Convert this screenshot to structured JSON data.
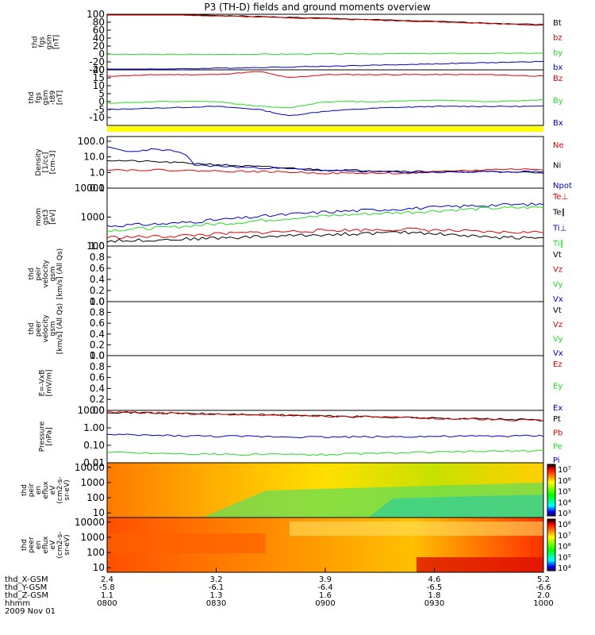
{
  "title": "P3 (TH-D) fields and ground moments overview",
  "colors": {
    "black": "#000000",
    "red": "#e00000",
    "green": "#22dd22",
    "blue": "#0000cc",
    "yellow": "#ffff00"
  },
  "chart_data": [
    {
      "type": "line",
      "ylabel_lines": [
        "thd",
        "fgs",
        "gsm",
        "[nT]"
      ],
      "ylim": [
        -40,
        100
      ],
      "yticks": [
        "100",
        "80",
        "60",
        "40",
        "20",
        "0",
        "-20",
        "-40"
      ],
      "legend": [
        {
          "name": "Bt",
          "color": "black"
        },
        {
          "name": "bz",
          "color": "red"
        },
        {
          "name": "by",
          "color": "green"
        },
        {
          "name": "bx",
          "color": "blue"
        }
      ],
      "x_hours": [
        8.0,
        8.5,
        9.0,
        9.5,
        10.0
      ],
      "series": [
        {
          "name": "Bt",
          "color": "black",
          "values": [
            104,
            97,
            90,
            82,
            74
          ]
        },
        {
          "name": "bz",
          "color": "red",
          "values": [
            103,
            96,
            89,
            81,
            72
          ]
        },
        {
          "name": "by",
          "color": "green",
          "values": [
            -1,
            -1,
            0,
            1,
            2
          ]
        },
        {
          "name": "bx",
          "color": "blue",
          "values": [
            -40,
            -36,
            -31,
            -25,
            -19
          ]
        }
      ]
    },
    {
      "type": "line",
      "ylabel_lines": [
        "thd",
        "fgs",
        "gsm",
        "-t89",
        "[nT]"
      ],
      "ylim": [
        -15,
        20
      ],
      "yticks": [
        "20",
        "15",
        "10",
        "5",
        "0",
        "-5",
        "-10"
      ],
      "legend": [
        {
          "name": "Bz",
          "color": "red"
        },
        {
          "name": "By",
          "color": "green"
        },
        {
          "name": "Bx",
          "color": "blue"
        }
      ],
      "x_hours": [
        8.0,
        8.25,
        8.5,
        8.7,
        8.83,
        9.0,
        9.25,
        9.5,
        9.75,
        10.0
      ],
      "series": [
        {
          "name": "Bz",
          "color": "red",
          "values": [
            16,
            17,
            17,
            19,
            15,
            17,
            17,
            17,
            17,
            16
          ]
        },
        {
          "name": "By",
          "color": "green",
          "values": [
            -1,
            0,
            0,
            -3,
            -4,
            0,
            0,
            1,
            0,
            1
          ]
        },
        {
          "name": "Bx",
          "color": "blue",
          "values": [
            -5,
            -4,
            -3,
            -5,
            -9,
            -6,
            -4,
            -3,
            -3,
            -3
          ]
        }
      ]
    },
    {
      "type": "line",
      "ylabel_lines": [
        "Density",
        "[1/cc]",
        "[cm-3]"
      ],
      "scale": "log",
      "ylim": [
        0.1,
        200
      ],
      "yticks": [
        "100.0",
        "10.0",
        "1.0",
        "0.1"
      ],
      "legend": [
        {
          "name": "Ne",
          "color": "red"
        },
        {
          "name": "Ni",
          "color": "black"
        },
        {
          "name": "Npot",
          "color": "blue"
        }
      ],
      "x_hours": [
        8.0,
        8.1,
        8.2,
        8.3,
        8.4,
        8.6,
        8.8,
        9.0,
        9.4,
        9.8,
        10.0
      ],
      "series": [
        {
          "name": "Ni",
          "color": "black",
          "values": [
            6,
            5.5,
            5,
            4.4,
            3.8,
            2.7,
            2.0,
            1.5,
            1.2,
            1.1,
            1.0
          ]
        },
        {
          "name": "Ne",
          "color": "red",
          "values": [
            1.6,
            1.4,
            1.5,
            1.4,
            1.3,
            1.2,
            1.1,
            0.9,
            0.9,
            1.6,
            1.6
          ]
        },
        {
          "name": "Npot",
          "color": "blue",
          "values": [
            40,
            20,
            30,
            25,
            3,
            2.2,
            1.8,
            1.3,
            1.0,
            1.1,
            1.2
          ]
        }
      ]
    },
    {
      "type": "line",
      "ylabel_lines": [
        "mom",
        "gst3",
        "[eV]"
      ],
      "scale": "log",
      "ylim": [
        100,
        10000
      ],
      "yticks": [
        "10000",
        "1000",
        "100"
      ],
      "legend": [
        {
          "name": "Te⊥",
          "color": "red"
        },
        {
          "name": "Te∥",
          "color": "black"
        },
        {
          "name": "Ti⊥",
          "color": "blue"
        },
        {
          "name": "Ti∥",
          "color": "green"
        }
      ],
      "x_hours": [
        8.0,
        8.3,
        8.6,
        9.0,
        9.4,
        9.75,
        10.0
      ],
      "series": [
        {
          "name": "Ti⊥",
          "color": "blue",
          "values": [
            500,
            600,
            900,
            1500,
            2000,
            2600,
            2800
          ]
        },
        {
          "name": "Ti∥",
          "color": "green",
          "values": [
            350,
            450,
            650,
            1100,
            1500,
            2000,
            2200
          ]
        },
        {
          "name": "Te⊥",
          "color": "red",
          "values": [
            200,
            220,
            280,
            350,
            380,
            300,
            300
          ]
        },
        {
          "name": "Te∥",
          "color": "black",
          "values": [
            150,
            170,
            200,
            250,
            300,
            200,
            200
          ]
        }
      ]
    },
    {
      "type": "line",
      "ylabel_lines": [
        "thd",
        "peir",
        "velocity",
        "gsm",
        "[km/s] (All Qs)"
      ],
      "ylim": [
        0,
        1
      ],
      "yticks": [
        "1.0",
        "0.8",
        "0.6",
        "0.4",
        "0.2",
        "0.0"
      ],
      "legend": [
        {
          "name": "Vt",
          "color": "black"
        },
        {
          "name": "Vz",
          "color": "red"
        },
        {
          "name": "Vy",
          "color": "green"
        },
        {
          "name": "Vx",
          "color": "blue"
        }
      ],
      "series": []
    },
    {
      "type": "line",
      "ylabel_lines": [
        "thd",
        "peer",
        "velocity",
        "gsm",
        "[km/s] (All Qs)"
      ],
      "ylim": [
        0,
        1
      ],
      "yticks": [
        "1.0",
        "0.8",
        "0.6",
        "0.4",
        "0.2",
        "0.0"
      ],
      "legend": [
        {
          "name": "Vt",
          "color": "black"
        },
        {
          "name": "Vz",
          "color": "red"
        },
        {
          "name": "Vy",
          "color": "green"
        },
        {
          "name": "Vx",
          "color": "blue"
        }
      ],
      "series": []
    },
    {
      "type": "line",
      "ylabel_lines": [
        "E=-VxB",
        "[mV/m]"
      ],
      "ylim": [
        0,
        1
      ],
      "yticks": [
        "1.0",
        "0.8",
        "0.6",
        "0.4",
        "0.2",
        "0.0"
      ],
      "legend": [
        {
          "name": "Ez",
          "color": "red"
        },
        {
          "name": "Ey",
          "color": "green"
        },
        {
          "name": "Ex",
          "color": "blue"
        }
      ],
      "series": []
    },
    {
      "type": "line",
      "ylabel_lines": [
        "Pressure",
        "[nPa]"
      ],
      "scale": "log",
      "ylim": [
        0.01,
        10
      ],
      "yticks": [
        "10.00",
        "1.00",
        "0.10",
        "0.01"
      ],
      "legend": [
        {
          "name": "Pt",
          "color": "black"
        },
        {
          "name": "Pb",
          "color": "red"
        },
        {
          "name": "Pe",
          "color": "green"
        },
        {
          "name": "Pi",
          "color": "blue"
        }
      ],
      "x_hours": [
        8.0,
        8.5,
        9.0,
        9.5,
        10.0
      ],
      "series": [
        {
          "name": "Pt",
          "color": "black",
          "values": [
            8.0,
            6.2,
            4.8,
            3.6,
            2.8
          ]
        },
        {
          "name": "Pb",
          "color": "red",
          "values": [
            7.8,
            6.0,
            4.7,
            3.5,
            2.6
          ]
        },
        {
          "name": "Pi",
          "color": "blue",
          "values": [
            0.4,
            0.33,
            0.3,
            0.32,
            0.35
          ]
        },
        {
          "name": "Pe",
          "color": "green",
          "values": [
            0.04,
            0.03,
            0.03,
            0.04,
            0.05
          ]
        }
      ]
    },
    {
      "type": "heatmap",
      "ylabel_lines": [
        "thd",
        "peir",
        "en",
        "eflux",
        "eV",
        "(cm2-s-",
        "sr-eV)"
      ],
      "scale": "log",
      "ylim": [
        5,
        20000
      ],
      "yticks": [
        "10000",
        "1000",
        "100",
        "10"
      ],
      "colorbar_labels": [
        "10⁷",
        "10⁶",
        "10⁵",
        "10⁴",
        "10³"
      ]
    },
    {
      "type": "heatmap",
      "ylabel_lines": [
        "thd",
        "peer",
        "en",
        "eflux",
        "eV",
        "(cm2-s-",
        "sr-eV)"
      ],
      "scale": "log",
      "ylim": [
        5,
        20000
      ],
      "yticks": [
        "10000",
        "1000",
        "100",
        "10"
      ],
      "colorbar_labels": [
        "10⁸",
        "10⁷",
        "10⁶",
        "10⁵",
        "10⁴"
      ]
    }
  ],
  "xaxis": {
    "row_labels": [
      "thd_X-GSM",
      "thd_Y-GSM",
      "thd_Z-GSM",
      "hhmm",
      "2009 Nov 01"
    ],
    "ticks": [
      {
        "x": "2.4",
        "y": "-5.8",
        "z": "1.1",
        "t": "0800"
      },
      {
        "x": "3.2",
        "y": "-6.1",
        "z": "1.3",
        "t": "0830"
      },
      {
        "x": "3.9",
        "y": "-6.4",
        "z": "1.6",
        "t": "0900"
      },
      {
        "x": "4.6",
        "y": "-6.5",
        "z": "1.8",
        "t": "0930"
      },
      {
        "x": "5.2",
        "y": "-6.6",
        "z": "2.0",
        "t": "1000"
      }
    ]
  }
}
